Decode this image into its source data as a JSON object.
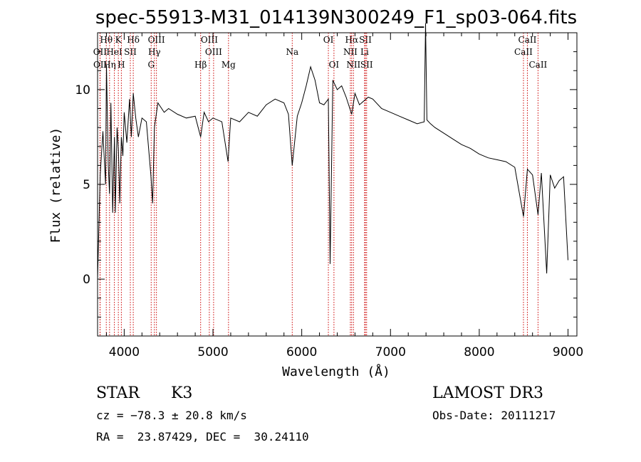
{
  "chart_data": {
    "type": "line",
    "title": "spec-55913-M31_014139N300249_F1_sp03-064.fits",
    "xlabel": "Wavelength (Å)",
    "ylabel": "Flux (relative)",
    "xlim": [
      3700,
      9100
    ],
    "ylim": [
      -3,
      13
    ],
    "xticks": [
      4000,
      5000,
      6000,
      7000,
      8000,
      9000
    ],
    "yticks": [
      0,
      5,
      10
    ],
    "grid": false,
    "series": [
      {
        "x": [
          3700,
          3730,
          3760,
          3790,
          3800,
          3820,
          3835,
          3850,
          3870,
          3890,
          3900,
          3920,
          3935,
          3950,
          3968,
          3985,
          4000,
          4030,
          4060,
          4080,
          4102,
          4130,
          4160,
          4200,
          4250,
          4300,
          4320,
          4340,
          4380,
          4450,
          4500,
          4600,
          4700,
          4800,
          4861,
          4900,
          4950,
          5000,
          5100,
          5170,
          5200,
          5300,
          5400,
          5500,
          5600,
          5700,
          5800,
          5850,
          5893,
          5950,
          6000,
          6050,
          6100,
          6150,
          6200,
          6250,
          6300,
          6320,
          6350,
          6400,
          6450,
          6500,
          6563,
          6600,
          6650,
          6700,
          6750,
          6800,
          6900,
          7000,
          7100,
          7200,
          7300,
          7380,
          7395,
          7410,
          7450,
          7500,
          7600,
          7700,
          7800,
          7900,
          8000,
          8100,
          8200,
          8300,
          8400,
          8498,
          8542,
          8600,
          8662,
          8700,
          8760,
          8800,
          8850,
          8900,
          8950,
          9000
        ],
        "y": [
          0,
          5.5,
          7.8,
          5,
          11.3,
          6,
          4.5,
          9.3,
          3.5,
          7.5,
          3.5,
          8,
          6.8,
          4,
          7.5,
          6.5,
          8.8,
          7.2,
          9.5,
          7.5,
          9.8,
          8.5,
          7.5,
          8.5,
          8.3,
          5.5,
          4,
          8,
          9.3,
          8.8,
          9,
          8.7,
          8.5,
          8.6,
          7.5,
          8.8,
          8.3,
          8.5,
          8.3,
          6.2,
          8.5,
          8.3,
          8.8,
          8.6,
          9.2,
          9.5,
          9.3,
          8.7,
          6,
          8.6,
          9.3,
          10.2,
          11.2,
          10.5,
          9.3,
          9.2,
          9.5,
          0.8,
          10.5,
          10,
          10.2,
          9.6,
          8.7,
          9.8,
          9.2,
          9.4,
          9.6,
          9.5,
          9,
          8.8,
          8.6,
          8.4,
          8.2,
          8.3,
          13.5,
          8.4,
          8.2,
          8,
          7.7,
          7.4,
          7.1,
          6.9,
          6.6,
          6.4,
          6.3,
          6.2,
          5.9,
          3.3,
          5.8,
          5.5,
          3.4,
          5.6,
          0.3,
          5.5,
          4.8,
          5.2,
          5.4,
          1
        ]
      }
    ],
    "spectral_lines": [
      {
        "label": "Hθ",
        "x": 3798,
        "row": 1
      },
      {
        "label": "OII",
        "x": 3727,
        "row": 2
      },
      {
        "label": "OII",
        "x": 3729,
        "row": 3
      },
      {
        "label": "K",
        "x": 3934,
        "row": 1
      },
      {
        "label": "HeI",
        "x": 3889,
        "row": 2
      },
      {
        "label": "Hη",
        "x": 3835,
        "row": 3
      },
      {
        "label": "Hδ",
        "x": 4102,
        "row": 1
      },
      {
        "label": "SII",
        "x": 4069,
        "row": 2
      },
      {
        "label": "H",
        "x": 3968,
        "row": 3
      },
      {
        "label": "OIII",
        "x": 4363,
        "row": 1
      },
      {
        "label": "Hγ",
        "x": 4340,
        "row": 2
      },
      {
        "label": "G",
        "x": 4304,
        "row": 3
      },
      {
        "label": "Hβ",
        "x": 4861,
        "row": 3
      },
      {
        "label": "OIII",
        "x": 4959,
        "row": 1
      },
      {
        "label": "OIII",
        "x": 5007,
        "row": 2
      },
      {
        "label": "Mg",
        "x": 5175,
        "row": 3
      },
      {
        "label": "Na",
        "x": 5893,
        "row": 2
      },
      {
        "label": "OI",
        "x": 6300,
        "row": 1
      },
      {
        "label": "OI",
        "x": 6363,
        "row": 3
      },
      {
        "label": "Hα",
        "x": 6563,
        "row": 1
      },
      {
        "label": "NII",
        "x": 6548,
        "row": 2
      },
      {
        "label": "NII",
        "x": 6583,
        "row": 3
      },
      {
        "label": "SII",
        "x": 6717,
        "row": 1
      },
      {
        "label": "Li",
        "x": 6708,
        "row": 2
      },
      {
        "label": "SII",
        "x": 6731,
        "row": 3
      },
      {
        "label": "CaII",
        "x": 8542,
        "row": 1
      },
      {
        "label": "CaII",
        "x": 8498,
        "row": 2
      },
      {
        "label": "CaII",
        "x": 8662,
        "row": 3
      }
    ]
  },
  "info": {
    "class": "STAR",
    "subclass": "K3",
    "survey": "LAMOST DR3",
    "cz": "cz = −78.3 ± 20.8 km/s",
    "obs_date": "Obs-Date: 20111217",
    "coords": "RA =  23.87429, DEC =  30.24110"
  }
}
